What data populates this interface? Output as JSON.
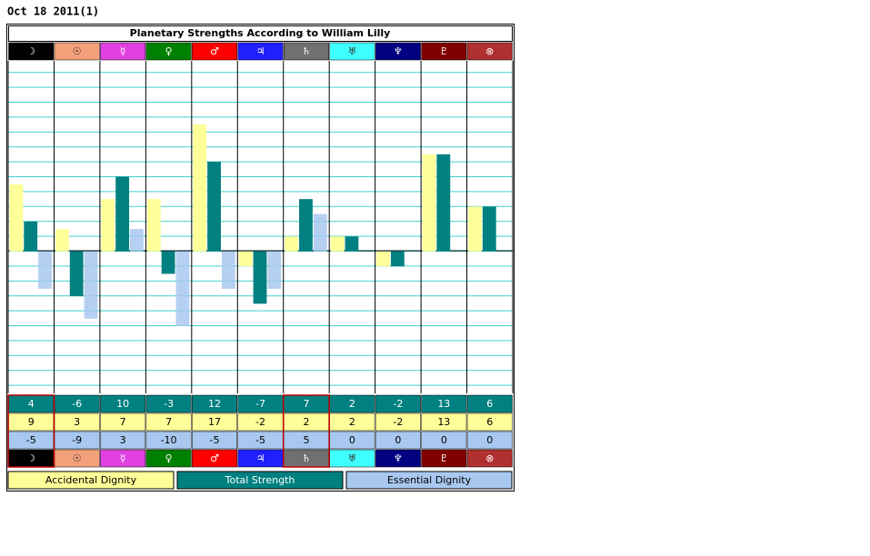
{
  "date": "Oct 18 2011(1)",
  "chart_data": {
    "type": "bar",
    "title": "Planetary Strengths According to William Lilly",
    "categories": [
      "☽",
      "☉",
      "☿",
      "♀",
      "♂",
      "♃",
      "♄",
      "♅",
      "♆",
      "♇",
      "⊗"
    ],
    "category_colors": [
      "#000000",
      "#f4a07a",
      "#e040e0",
      "#008000",
      "#ff0000",
      "#2020ff",
      "#707070",
      "#40ffff",
      "#000080",
      "#800000",
      "#b03030"
    ],
    "series": [
      {
        "name": "Accidental Dignity",
        "color": "#ffff99",
        "values": [
          9,
          3,
          7,
          7,
          17,
          -2,
          2,
          2,
          -2,
          13,
          6
        ]
      },
      {
        "name": "Total Strength",
        "color": "#008080",
        "values": [
          4,
          -6,
          10,
          -3,
          12,
          -7,
          7,
          2,
          -2,
          13,
          6
        ]
      },
      {
        "name": "Essential Dignity",
        "color": "#a8c8f0",
        "values": [
          -5,
          -9,
          3,
          -10,
          -5,
          -5,
          5,
          0,
          0,
          0,
          0
        ]
      }
    ],
    "ylim": [
      -19,
      25.5
    ]
  }
}
